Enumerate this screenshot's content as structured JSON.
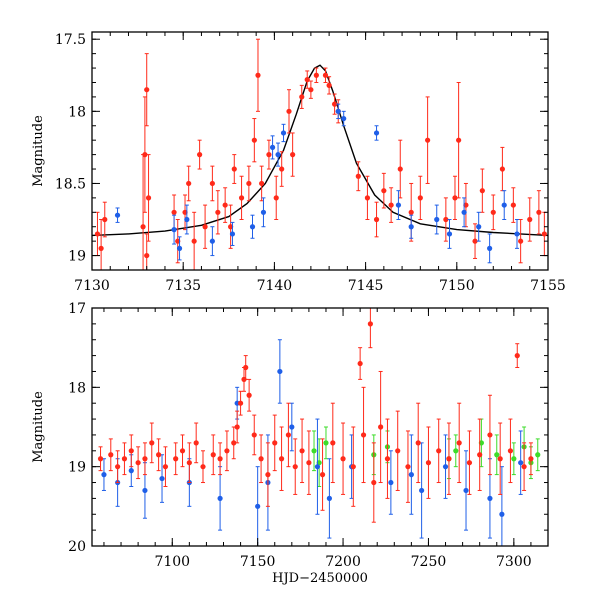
{
  "chart_data": [
    {
      "type": "scatter",
      "xlabel": "",
      "ylabel": "Magnitude",
      "xlim": [
        7130,
        7155
      ],
      "ylim": [
        19.1,
        17.45
      ],
      "y_inverted": true,
      "xticks": [
        7130,
        7135,
        7140,
        7145,
        7150,
        7155
      ],
      "yticks": [
        17.5,
        18,
        18.5,
        19
      ],
      "xtick_labels": [
        "7130",
        "7135",
        "7140",
        "7145",
        "7150",
        "7155"
      ],
      "ytick_labels": [
        "17.5",
        "18",
        "18.5",
        "19"
      ],
      "colors": {
        "series_red": "#ff2a1a",
        "series_blue": "#1f5fe8",
        "model": "#000000"
      },
      "model": {
        "name": "",
        "x": [
          7130.0,
          7132.0,
          7134.0,
          7136.0,
          7137.5,
          7138.5,
          7139.5,
          7140.5,
          7141.2,
          7141.8,
          7142.2,
          7142.5,
          7142.8,
          7143.2,
          7143.8,
          7144.5,
          7145.5,
          7146.5,
          7148.0,
          7150.0,
          7152.0,
          7155.0
        ],
        "y": [
          18.86,
          18.85,
          18.83,
          18.79,
          18.73,
          18.64,
          18.5,
          18.27,
          18.02,
          17.79,
          17.7,
          17.68,
          17.72,
          17.86,
          18.1,
          18.36,
          18.58,
          18.7,
          18.78,
          18.82,
          18.84,
          18.86
        ]
      },
      "series": [
        {
          "name": "",
          "color": "#ff2a1a",
          "points": [
            [
              7130.3,
              18.85,
              0.15
            ],
            [
              7130.5,
              18.95,
              0.2
            ],
            [
              7130.7,
              18.75,
              0.12
            ],
            [
              7132.8,
              18.8,
              0.5
            ],
            [
              7132.9,
              18.3,
              0.4
            ],
            [
              7133.0,
              17.85,
              0.25
            ],
            [
              7133.1,
              18.6,
              0.3
            ],
            [
              7133.0,
              19.0,
              0.15
            ],
            [
              7134.5,
              18.7,
              0.12
            ],
            [
              7134.7,
              18.9,
              0.15
            ],
            [
              7135.1,
              18.7,
              0.12
            ],
            [
              7135.3,
              18.5,
              0.12
            ],
            [
              7135.6,
              18.9,
              0.2
            ],
            [
              7135.9,
              18.3,
              0.1
            ],
            [
              7136.2,
              18.8,
              0.15
            ],
            [
              7136.6,
              18.5,
              0.12
            ],
            [
              7136.9,
              18.7,
              0.15
            ],
            [
              7137.3,
              18.65,
              0.12
            ],
            [
              7137.6,
              18.8,
              0.15
            ],
            [
              7137.8,
              18.4,
              0.1
            ],
            [
              7138.2,
              18.6,
              0.15
            ],
            [
              7138.6,
              18.5,
              0.12
            ],
            [
              7138.9,
              18.2,
              0.15
            ],
            [
              7139.1,
              17.75,
              0.25
            ],
            [
              7139.3,
              18.5,
              0.12
            ],
            [
              7139.7,
              18.3,
              0.1
            ],
            [
              7140.1,
              18.6,
              0.15
            ],
            [
              7140.4,
              18.4,
              0.12
            ],
            [
              7140.8,
              18.0,
              0.15
            ],
            [
              7141.0,
              18.3,
              0.15
            ],
            [
              7141.5,
              17.9,
              0.08
            ],
            [
              7141.8,
              17.78,
              0.06
            ],
            [
              7142.0,
              17.85,
              0.06
            ],
            [
              7142.3,
              17.75,
              0.05
            ],
            [
              7142.8,
              17.75,
              0.05
            ],
            [
              7143.0,
              17.82,
              0.06
            ],
            [
              7143.3,
              17.95,
              0.07
            ],
            [
              7143.5,
              18.0,
              0.08
            ],
            [
              7144.6,
              18.45,
              0.1
            ],
            [
              7145.1,
              18.6,
              0.15
            ],
            [
              7145.6,
              18.75,
              0.12
            ],
            [
              7146.0,
              18.55,
              0.12
            ],
            [
              7146.4,
              18.65,
              0.12
            ],
            [
              7146.9,
              18.4,
              0.2
            ],
            [
              7147.5,
              18.7,
              0.2
            ],
            [
              7148.0,
              18.6,
              0.15
            ],
            [
              7148.4,
              18.2,
              0.3
            ],
            [
              7149.4,
              18.75,
              0.15
            ],
            [
              7149.9,
              18.6,
              0.15
            ],
            [
              7150.1,
              18.2,
              0.4
            ],
            [
              7150.5,
              18.65,
              0.15
            ],
            [
              7151.0,
              18.9,
              0.12
            ],
            [
              7151.4,
              18.55,
              0.15
            ],
            [
              7152.0,
              18.7,
              0.12
            ],
            [
              7152.5,
              18.4,
              0.15
            ],
            [
              7153.1,
              18.65,
              0.12
            ],
            [
              7153.5,
              18.9,
              0.15
            ],
            [
              7154.0,
              18.75,
              0.15
            ],
            [
              7154.5,
              18.7,
              0.15
            ],
            [
              7154.8,
              18.85,
              0.15
            ]
          ]
        },
        {
          "name": "",
          "color": "#1f5fe8",
          "points": [
            [
              7131.4,
              18.72,
              0.05
            ],
            [
              7134.5,
              18.82,
              0.1
            ],
            [
              7134.8,
              18.95,
              0.08
            ],
            [
              7135.2,
              18.75,
              0.1
            ],
            [
              7136.6,
              18.9,
              0.1
            ],
            [
              7137.7,
              18.85,
              0.08
            ],
            [
              7138.8,
              18.8,
              0.08
            ],
            [
              7139.4,
              18.7,
              0.1
            ],
            [
              7139.9,
              18.25,
              0.08
            ],
            [
              7140.2,
              18.3,
              0.08
            ],
            [
              7140.5,
              18.15,
              0.06
            ],
            [
              7143.5,
              18.0,
              0.05
            ],
            [
              7143.8,
              18.05,
              0.05
            ],
            [
              7145.6,
              18.15,
              0.05
            ],
            [
              7146.8,
              18.65,
              0.1
            ],
            [
              7147.5,
              18.8,
              0.08
            ],
            [
              7148.9,
              18.75,
              0.1
            ],
            [
              7149.6,
              18.85,
              0.1
            ],
            [
              7150.4,
              18.7,
              0.1
            ],
            [
              7151.2,
              18.8,
              0.1
            ],
            [
              7151.8,
              18.95,
              0.1
            ],
            [
              7152.6,
              18.65,
              0.1
            ],
            [
              7153.3,
              18.85,
              0.1
            ]
          ]
        }
      ]
    },
    {
      "type": "scatter",
      "xlabel": "HJD−2450000",
      "ylabel": "Magnitude",
      "xlim": [
        7053,
        7320
      ],
      "ylim": [
        20,
        17
      ],
      "y_inverted": true,
      "xticks": [
        7100,
        7150,
        7200,
        7250,
        7300
      ],
      "yticks": [
        17,
        18,
        19,
        20
      ],
      "xtick_labels": [
        "7100",
        "7150",
        "7200",
        "7250",
        "7300"
      ],
      "ytick_labels": [
        "17",
        "18",
        "19",
        "20"
      ],
      "colors": {
        "series_red": "#ff2a1a",
        "series_blue": "#1f5fe8",
        "series_green": "#3ddc2a"
      },
      "series": [
        {
          "name": "",
          "color": "#3ddc2a",
          "points": [
            [
              7183,
              18.8,
              0.25
            ],
            [
              7186,
              18.95,
              0.3
            ],
            [
              7190,
              18.7,
              0.2
            ],
            [
              7218,
              18.85,
              0.25
            ],
            [
              7226,
              18.75,
              0.2
            ],
            [
              7262,
              18.9,
              0.25
            ],
            [
              7266,
              18.8,
              0.2
            ],
            [
              7281,
              18.7,
              0.3
            ],
            [
              7290,
              18.85,
              0.25
            ],
            [
              7300,
              18.9,
              0.2
            ],
            [
              7306,
              18.75,
              0.25
            ],
            [
              7310,
              18.95,
              0.2
            ],
            [
              7314,
              18.85,
              0.2
            ]
          ]
        },
        {
          "name": "",
          "color": "#1f5fe8",
          "points": [
            [
              7060,
              19.1,
              0.2
            ],
            [
              7068,
              19.2,
              0.3
            ],
            [
              7076,
              19.05,
              0.2
            ],
            [
              7084,
              19.3,
              0.35
            ],
            [
              7094,
              19.15,
              0.3
            ],
            [
              7110,
              19.2,
              0.3
            ],
            [
              7128,
              19.4,
              0.4
            ],
            [
              7138,
              18.2,
              0.2
            ],
            [
              7150,
              19.5,
              0.5
            ],
            [
              7156,
              19.2,
              0.6
            ],
            [
              7163,
              17.8,
              0.4
            ],
            [
              7170,
              18.5,
              0.3
            ],
            [
              7185,
              19.0,
              0.6
            ],
            [
              7192,
              19.4,
              0.5
            ],
            [
              7205,
              19.0,
              0.4
            ],
            [
              7228,
              19.2,
              0.4
            ],
            [
              7240,
              19.1,
              0.5
            ],
            [
              7246,
              19.3,
              0.6
            ],
            [
              7260,
              19.0,
              0.4
            ],
            [
              7272,
              19.3,
              0.5
            ],
            [
              7286,
              19.4,
              0.5
            ],
            [
              7293,
              19.6,
              0.6
            ],
            [
              7304,
              18.95,
              0.4
            ]
          ]
        },
        {
          "name": "",
          "color": "#ff2a1a",
          "points": [
            [
              7058,
              18.9,
              0.15
            ],
            [
              7064,
              18.85,
              0.2
            ],
            [
              7068,
              19.0,
              0.2
            ],
            [
              7072,
              18.9,
              0.2
            ],
            [
              7076,
              18.8,
              0.2
            ],
            [
              7080,
              18.95,
              0.2
            ],
            [
              7084,
              18.9,
              0.2
            ],
            [
              7088,
              18.7,
              0.25
            ],
            [
              7092,
              18.85,
              0.2
            ],
            [
              7096,
              19.0,
              0.25
            ],
            [
              7102,
              18.9,
              0.2
            ],
            [
              7106,
              18.8,
              0.2
            ],
            [
              7110,
              18.95,
              0.25
            ],
            [
              7114,
              18.7,
              0.25
            ],
            [
              7118,
              19.0,
              0.2
            ],
            [
              7124,
              18.85,
              0.25
            ],
            [
              7128,
              18.9,
              0.2
            ],
            [
              7132,
              18.8,
              0.25
            ],
            [
              7136,
              18.7,
              0.2
            ],
            [
              7138,
              18.5,
              0.2
            ],
            [
              7140,
              18.2,
              0.15
            ],
            [
              7142,
              17.9,
              0.15
            ],
            [
              7143,
              17.75,
              0.15
            ],
            [
              7145,
              18.1,
              0.2
            ],
            [
              7148,
              18.6,
              0.25
            ],
            [
              7152,
              18.9,
              0.3
            ],
            [
              7156,
              19.1,
              0.4
            ],
            [
              7160,
              18.7,
              0.35
            ],
            [
              7164,
              18.9,
              0.4
            ],
            [
              7168,
              18.6,
              0.4
            ],
            [
              7172,
              19.0,
              0.35
            ],
            [
              7176,
              18.8,
              0.4
            ],
            [
              7180,
              18.95,
              0.4
            ],
            [
              7188,
              19.1,
              0.45
            ],
            [
              7194,
              18.7,
              0.5
            ],
            [
              7200,
              18.9,
              0.45
            ],
            [
              7206,
              19.0,
              0.5
            ],
            [
              7212,
              18.6,
              0.6
            ],
            [
              7218,
              19.2,
              0.5
            ],
            [
              7222,
              18.5,
              0.7
            ],
            [
              7226,
              18.9,
              0.5
            ],
            [
              7232,
              18.8,
              0.5
            ],
            [
              7238,
              19.0,
              0.45
            ],
            [
              7244,
              18.7,
              0.5
            ],
            [
              7250,
              18.95,
              0.45
            ],
            [
              7256,
              18.8,
              0.4
            ],
            [
              7262,
              18.9,
              0.45
            ],
            [
              7268,
              18.7,
              0.5
            ],
            [
              7274,
              18.95,
              0.4
            ],
            [
              7280,
              18.85,
              0.45
            ],
            [
              7286,
              18.6,
              0.5
            ],
            [
              7292,
              18.9,
              0.45
            ],
            [
              7298,
              18.8,
              0.4
            ],
            [
              7302,
              17.6,
              0.15
            ],
            [
              7306,
              19.0,
              0.3
            ],
            [
              7310,
              18.9,
              0.2
            ],
            [
              7210,
              17.7,
              0.2
            ],
            [
              7216,
              17.2,
              0.3
            ]
          ]
        }
      ]
    }
  ]
}
